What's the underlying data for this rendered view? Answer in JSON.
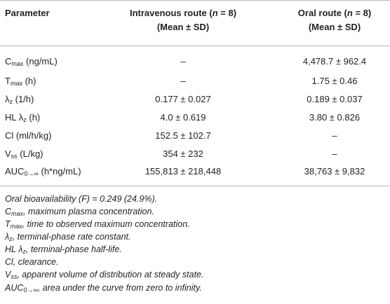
{
  "table": {
    "headers": {
      "parameter": "Parameter",
      "iv_line1_pre": "Intravenous route (",
      "iv_n": "n",
      "iv_line1_post": " = 8)",
      "iv_line2": "(Mean ± SD)",
      "oral_line1_pre": "Oral route (",
      "oral_n": "n",
      "oral_line1_post": " = 8)",
      "oral_line2": "(Mean ± SD)"
    },
    "rows": [
      {
        "p_main": "C",
        "p_sub": "max",
        "p_rest": " (ng/mL)",
        "iv": "–",
        "oral": "4,478.7 ± 962.4"
      },
      {
        "p_main": "T",
        "p_sub": "max",
        "p_rest": " (h)",
        "iv": "–",
        "oral": "1.75 ± 0.46"
      },
      {
        "p_main": "λ",
        "p_sub": "z",
        "p_rest": " (1/h)",
        "iv": "0.177 ± 0.027",
        "oral": "0.189 ± 0.037"
      },
      {
        "p_main": "HL λ",
        "p_sub": "z",
        "p_rest": " (h)",
        "iv": "4.0 ± 0.619",
        "oral": "3.80 ± 0.826"
      },
      {
        "p_main": "Cl (ml/h/kg)",
        "p_sub": "",
        "p_rest": "",
        "iv": "152.5 ± 102.7",
        "oral": "–"
      },
      {
        "p_main": "V",
        "p_sub": "ss",
        "p_rest": " (L/kg)",
        "iv": "354 ± 232",
        "oral": "–"
      },
      {
        "p_main": "AUC",
        "p_sub": "0→∞",
        "p_rest": " (h*ng/mL)",
        "iv": "155,813 ± 218,448",
        "oral": "38,763 ± 9,832"
      }
    ]
  },
  "footnotes": [
    {
      "main": "Oral bioavailability (F) = 0.249 (24.9%).",
      "sub": "",
      "rest": ""
    },
    {
      "main": "C",
      "sub": "max",
      "rest": ", maximum plasma concentration."
    },
    {
      "main": "T",
      "sub": "max",
      "rest": ", time to observed maximum concentration."
    },
    {
      "main": "λ",
      "sub": "z",
      "rest": ", terminal-phase rate constant."
    },
    {
      "main": "HL λ",
      "sub": "z",
      "rest": ", terminal-phase half-life."
    },
    {
      "main": "Cl, clearance.",
      "sub": "",
      "rest": ""
    },
    {
      "main": "V",
      "sub": "ss",
      "rest": ", apparent volume of distribution at steady state."
    },
    {
      "main": "AUC",
      "sub": "0→∞",
      "rest": ", area under the curve from zero to infinity."
    }
  ]
}
